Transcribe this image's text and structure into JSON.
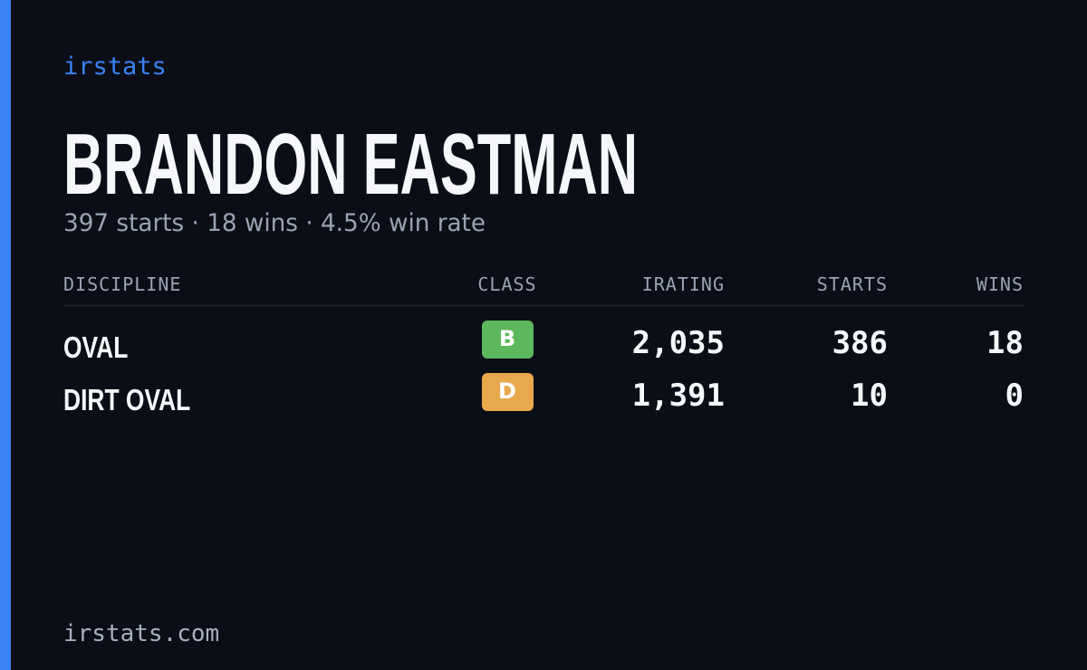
{
  "brand": "irstats",
  "driver": {
    "name": "BRANDON EASTMAN",
    "summary": "397 starts · 18 wins · 4.5% win rate"
  },
  "table": {
    "headers": [
      "DISCIPLINE",
      "CLASS",
      "IRATING",
      "STARTS",
      "WINS"
    ],
    "rows": [
      [
        "OVAL",
        "B",
        "2,035",
        "386",
        "18"
      ],
      [
        "DIRT OVAL",
        "D",
        "1,391",
        "10",
        "0"
      ]
    ]
  },
  "footer": "irstats.com"
}
